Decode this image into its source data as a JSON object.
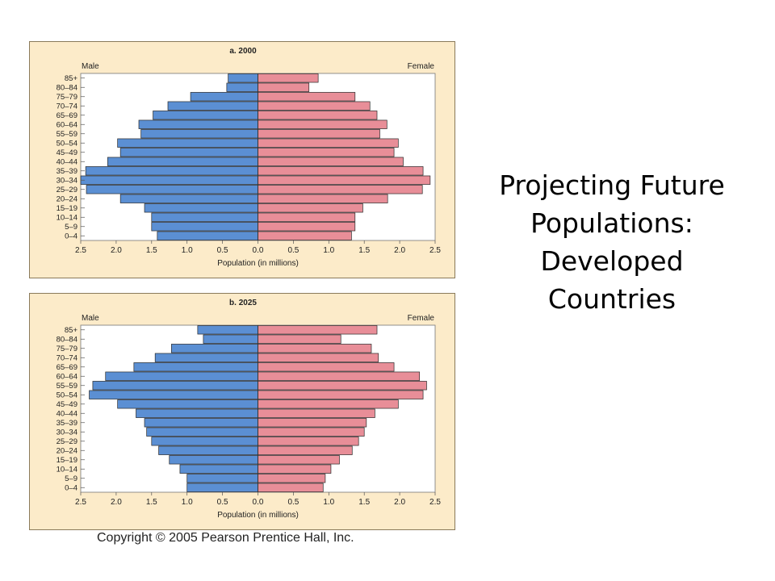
{
  "slide": {
    "title_lines": [
      "Projecting Future",
      "Populations:",
      "Developed",
      "Countries"
    ]
  },
  "copyright": "Copyright © 2005 Pearson Prentice Hall, Inc.",
  "colors": {
    "male": "#5b8fd3",
    "female": "#e88e98",
    "panel_bg": "#fcebc9",
    "stroke": "#2a2a2a"
  },
  "chart_data": [
    {
      "type": "bar",
      "subtype": "population-pyramid",
      "title": "a. 2000",
      "left_label": "Male",
      "right_label": "Female",
      "xlabel": "Population (in millions)",
      "xlim": [
        -2.5,
        2.5
      ],
      "x_ticks": [
        "2.5",
        "2.0",
        "1.5",
        "1.0",
        "0.5",
        "0.0",
        "0.5",
        "1.0",
        "1.5",
        "2.0",
        "2.5"
      ],
      "categories": [
        "85+",
        "80–84",
        "75–79",
        "70–74",
        "65–69",
        "60–64",
        "55–59",
        "50–54",
        "45–49",
        "40–44",
        "35–39",
        "30–34",
        "25–29",
        "20–24",
        "15–19",
        "10–14",
        "5–9",
        "0–4"
      ],
      "series": [
        {
          "name": "Male",
          "values": [
            0.42,
            0.44,
            0.95,
            1.27,
            1.48,
            1.68,
            1.65,
            1.98,
            1.94,
            2.12,
            2.43,
            2.5,
            2.42,
            1.94,
            1.6,
            1.5,
            1.5,
            1.42
          ]
        },
        {
          "name": "Female",
          "values": [
            0.85,
            0.72,
            1.37,
            1.58,
            1.68,
            1.82,
            1.72,
            1.98,
            1.92,
            2.05,
            2.33,
            2.43,
            2.32,
            1.83,
            1.48,
            1.37,
            1.37,
            1.32
          ]
        }
      ]
    },
    {
      "type": "bar",
      "subtype": "population-pyramid",
      "title": "b. 2025",
      "left_label": "Male",
      "right_label": "Female",
      "xlabel": "Population (in millions)",
      "xlim": [
        -2.5,
        2.5
      ],
      "x_ticks": [
        "2.5",
        "2.0",
        "1.5",
        "1.0",
        "0.5",
        "0.0",
        "0.5",
        "1.0",
        "1.5",
        "2.0",
        "2.5"
      ],
      "categories": [
        "85+",
        "80–84",
        "75–79",
        "70–74",
        "65–69",
        "60–64",
        "55–59",
        "50–54",
        "45–49",
        "40–44",
        "35–39",
        "30–34",
        "25–29",
        "20–24",
        "15–19",
        "10–14",
        "5–9",
        "0–4"
      ],
      "series": [
        {
          "name": "Male",
          "values": [
            0.85,
            0.77,
            1.22,
            1.45,
            1.75,
            2.15,
            2.33,
            2.38,
            1.98,
            1.72,
            1.6,
            1.57,
            1.5,
            1.4,
            1.25,
            1.1,
            1.0,
            1.0
          ]
        },
        {
          "name": "Female",
          "values": [
            1.68,
            1.17,
            1.6,
            1.7,
            1.92,
            2.28,
            2.38,
            2.33,
            1.98,
            1.65,
            1.53,
            1.5,
            1.42,
            1.33,
            1.15,
            1.03,
            0.95,
            0.92
          ]
        }
      ]
    }
  ]
}
